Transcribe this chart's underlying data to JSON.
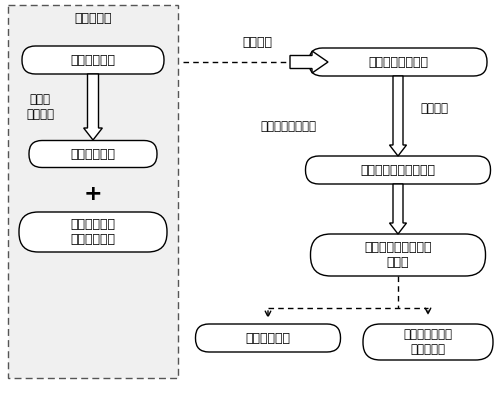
{
  "title": "三维传感器",
  "box1": "黑白光带图像",
  "box2": "三维空间坐标",
  "box3": "机械扫描系统\n确定竖直位置",
  "box4": "原始三维点云数据",
  "box5": "三维点云人体表面轮廓",
  "box6": "自动找取特征点和特\n征截面",
  "box7": "人体尺寸测量",
  "box8": "任意截面选取，\n查看，测量",
  "label1": "摄像机\n标定结果",
  "label2": "自动调整人体朝向",
  "label3": "点云去噪",
  "label4": "采集传输",
  "plus": "+",
  "bg_color": "#ffffff",
  "text_color": "#000000"
}
